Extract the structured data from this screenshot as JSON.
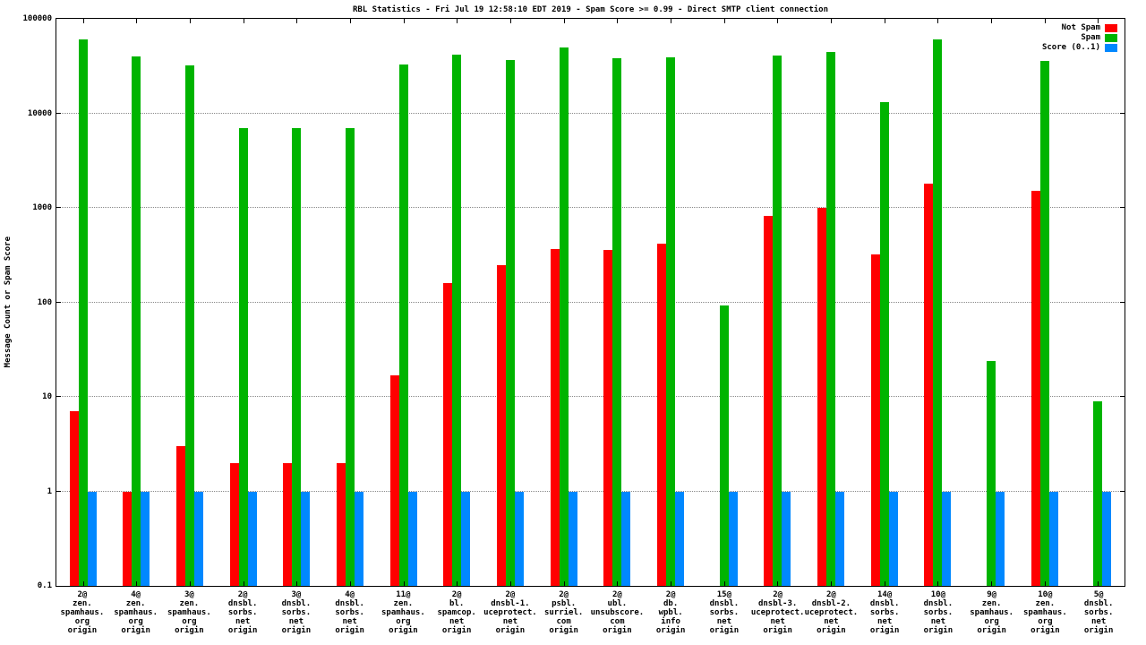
{
  "chart_data": {
    "type": "bar",
    "title": "RBL Statistics - Fri Jul 19 12:58:10 EDT 2019 - Spam Score >= 0.99 - Direct SMTP client connection",
    "ylabel": "Message Count or Spam Score",
    "xlabel": "",
    "yscale": "log",
    "ylim": [
      0.1,
      100000
    ],
    "grid": true,
    "legend_position": "top-right",
    "yticks": [
      {
        "label": "100000",
        "value": 100000
      },
      {
        "label": "10000",
        "value": 10000
      },
      {
        "label": "1000",
        "value": 1000
      },
      {
        "label": "100",
        "value": 100
      },
      {
        "label": "10",
        "value": 10
      },
      {
        "label": "1",
        "value": 1
      },
      {
        "label": "0.1",
        "value": 0.1
      }
    ],
    "categories": [
      [
        "2@",
        "zen.",
        "spamhaus.",
        "org",
        "origin"
      ],
      [
        "4@",
        "zen.",
        "spamhaus.",
        "org",
        "origin"
      ],
      [
        "3@",
        "zen.",
        "spamhaus.",
        "org",
        "origin"
      ],
      [
        "2@",
        "dnsbl.",
        "sorbs.",
        "net",
        "origin"
      ],
      [
        "3@",
        "dnsbl.",
        "sorbs.",
        "net",
        "origin"
      ],
      [
        "4@",
        "dnsbl.",
        "sorbs.",
        "net",
        "origin"
      ],
      [
        "11@",
        "zen.",
        "spamhaus.",
        "org",
        "origin"
      ],
      [
        "2@",
        "bl.",
        "spamcop.",
        "net",
        "origin"
      ],
      [
        "2@",
        "dnsbl-1.",
        "uceprotect.",
        "net",
        "origin"
      ],
      [
        "2@",
        "psbl.",
        "surriel.",
        "com",
        "origin"
      ],
      [
        "2@",
        "ubl.",
        "unsubscore.",
        "com",
        "origin"
      ],
      [
        "2@",
        "db.",
        "wpbl.",
        "info",
        "origin"
      ],
      [
        "15@",
        "dnsbl.",
        "sorbs.",
        "net",
        "origin"
      ],
      [
        "2@",
        "dnsbl-3.",
        "uceprotect.",
        "net",
        "origin"
      ],
      [
        "2@",
        "dnsbl-2.",
        "uceprotect.",
        "net",
        "origin"
      ],
      [
        "14@",
        "dnsbl.",
        "sorbs.",
        "net",
        "origin"
      ],
      [
        "10@",
        "dnsbl.",
        "sorbs.",
        "net",
        "origin"
      ],
      [
        "9@",
        "zen.",
        "spamhaus.",
        "org",
        "origin"
      ],
      [
        "10@",
        "zen.",
        "spamhaus.",
        "org",
        "origin"
      ],
      [
        "5@",
        "dnsbl.",
        "sorbs.",
        "net",
        "origin"
      ]
    ],
    "series": [
      {
        "name": "Not Spam",
        "color": "#ff0000",
        "values": [
          7,
          1,
          3,
          2,
          2,
          2,
          17,
          160,
          250,
          370,
          360,
          420,
          null,
          830,
          1000,
          320,
          1800,
          null,
          1500,
          null
        ]
      },
      {
        "name": "Spam",
        "color": "#00b400",
        "values": [
          61000,
          40000,
          32000,
          7000,
          7000,
          7000,
          33000,
          42000,
          37000,
          50000,
          38000,
          39000,
          93,
          41000,
          45000,
          13000,
          60000,
          24,
          36000,
          9
        ]
      },
      {
        "name": "Score (0..1)",
        "color": "#0088ff",
        "values": [
          1,
          1,
          1,
          1,
          1,
          1,
          1,
          1,
          1,
          1,
          1,
          1,
          1,
          1,
          1,
          1,
          1,
          1,
          1,
          1
        ]
      }
    ]
  }
}
